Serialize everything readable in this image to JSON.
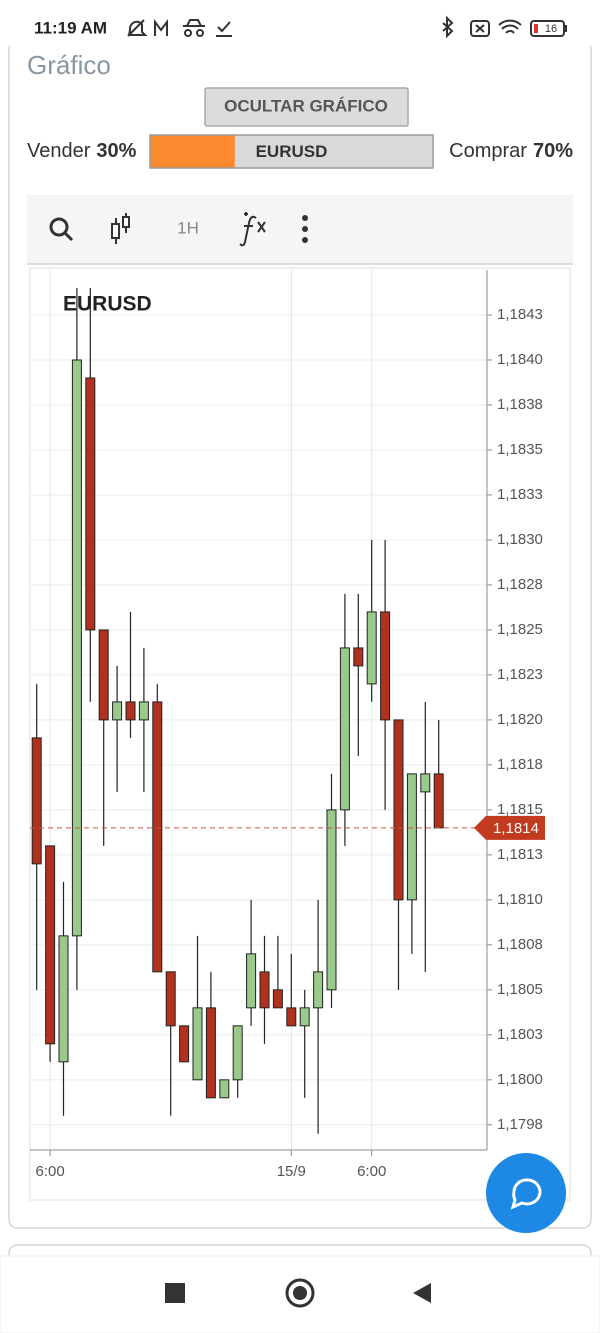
{
  "status_bar": {
    "time": "11:19 AM",
    "battery": "16"
  },
  "panel": {
    "title": "Gráfico",
    "button": "OCULTAR GRÁFICO"
  },
  "sentiment": {
    "sell_text": "Vender",
    "sell": 30,
    "sell_label": "30%",
    "symbol": "EURUSD",
    "buy_text": "Comprar",
    "buy": 70,
    "buy_label": "70%"
  },
  "toolbar": {
    "interval": "1H"
  },
  "chart_data": {
    "type": "candlestick",
    "title": "EURUSD",
    "categories": [
      null,
      "6:00",
      null,
      null,
      null,
      null,
      null,
      null,
      null,
      null,
      null,
      null,
      null,
      null,
      null,
      null,
      null,
      null,
      null,
      "15/9",
      null,
      null,
      null,
      null,
      null,
      "6:00",
      null,
      null,
      null,
      null,
      null
    ],
    "open": [
      1.1819,
      1.1813,
      1.1801,
      1.1808,
      1.1839,
      1.1825,
      1.182,
      1.1821,
      1.182,
      1.1821,
      1.1806,
      1.1803,
      1.18,
      1.1804,
      1.1799,
      1.18,
      1.1804,
      1.1806,
      1.1805,
      1.1804,
      1.1803,
      1.1804,
      1.1805,
      1.1815,
      1.1824,
      1.1822,
      1.1826,
      1.182,
      1.181,
      1.1816,
      1.1817
    ],
    "high": [
      1.1822,
      1.1813,
      1.1811,
      1.1844,
      1.1844,
      1.1825,
      1.1823,
      1.1826,
      1.1824,
      1.1822,
      1.1806,
      1.1803,
      1.1808,
      1.1806,
      1.18,
      1.1803,
      1.181,
      1.1808,
      1.1808,
      1.1807,
      1.1805,
      1.181,
      1.1817,
      1.1827,
      1.1827,
      1.183,
      1.183,
      1.182,
      1.1817,
      1.1821,
      1.182
    ],
    "low": [
      1.1805,
      1.1801,
      1.1798,
      1.1805,
      1.1821,
      1.1813,
      1.1816,
      1.1819,
      1.1816,
      1.1806,
      1.1798,
      1.1801,
      1.18,
      1.1799,
      1.1799,
      1.1799,
      1.1803,
      1.1802,
      1.1804,
      1.1803,
      1.1799,
      1.1797,
      1.1804,
      1.1813,
      1.1818,
      1.1821,
      1.1815,
      1.1805,
      1.1807,
      1.1806,
      1.1814
    ],
    "close": [
      1.1812,
      1.1802,
      1.1808,
      1.184,
      1.1825,
      1.182,
      1.1821,
      1.182,
      1.1821,
      1.1806,
      1.1803,
      1.1801,
      1.1804,
      1.1799,
      1.18,
      1.1803,
      1.1807,
      1.1804,
      1.1804,
      1.1803,
      1.1804,
      1.1806,
      1.1815,
      1.1824,
      1.1823,
      1.1826,
      1.182,
      1.181,
      1.1817,
      1.1817,
      1.1814
    ],
    "up_color": "#99c98b",
    "down_color": "#b0321e",
    "ylim": [
      1.17961,
      1.1845
    ],
    "yticks": [
      {
        "value": 1.17975,
        "label": "1,1798"
      },
      {
        "value": 1.18,
        "label": "1,1800"
      },
      {
        "value": 1.18025,
        "label": "1,1803"
      },
      {
        "value": 1.1805,
        "label": "1,1805"
      },
      {
        "value": 1.18075,
        "label": "1,1808"
      },
      {
        "value": 1.181,
        "label": "1,1810"
      },
      {
        "value": 1.18125,
        "label": "1,1813"
      },
      {
        "value": 1.1815,
        "label": "1,1815"
      },
      {
        "value": 1.18175,
        "label": "1,1818"
      },
      {
        "value": 1.182,
        "label": "1,1820"
      },
      {
        "value": 1.18225,
        "label": "1,1823"
      },
      {
        "value": 1.1825,
        "label": "1,1825"
      },
      {
        "value": 1.18275,
        "label": "1,1828"
      },
      {
        "value": 1.183,
        "label": "1,1830"
      },
      {
        "value": 1.18325,
        "label": "1,1833"
      },
      {
        "value": 1.1835,
        "label": "1,1835"
      },
      {
        "value": 1.18375,
        "label": "1,1838"
      },
      {
        "value": 1.184,
        "label": "1,1840"
      },
      {
        "value": 1.18425,
        "label": "1,1843"
      }
    ],
    "grid": true,
    "last_price": {
      "value": 1.1814,
      "label": "1,1814"
    }
  }
}
